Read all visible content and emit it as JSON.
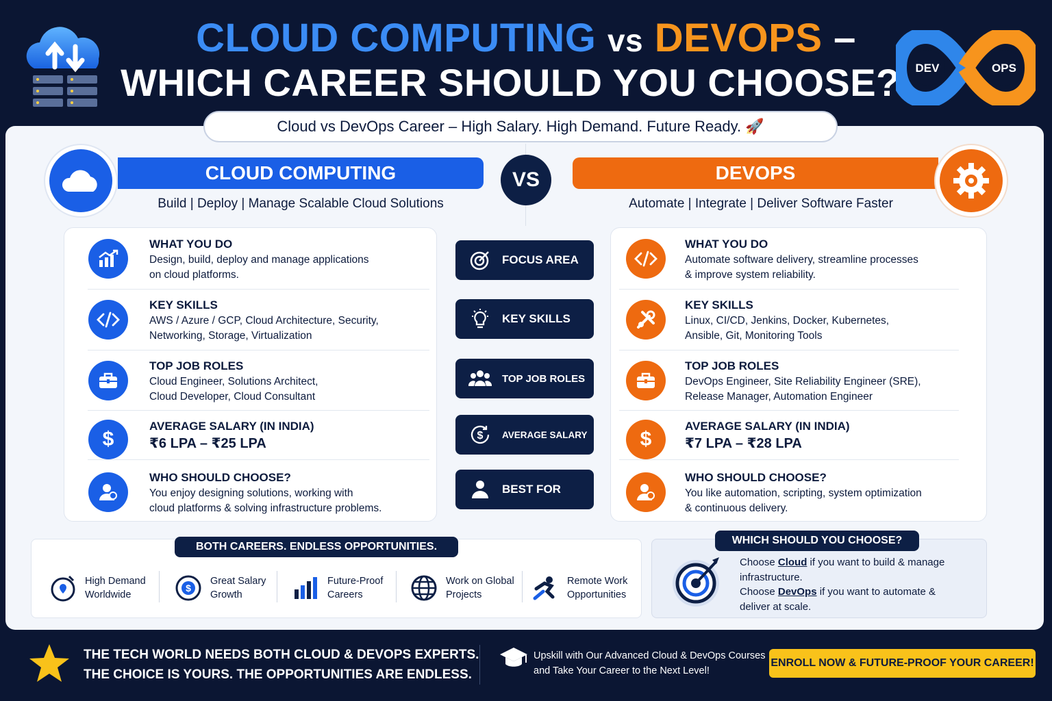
{
  "header": {
    "title_cloud": "CLOUD COMPUTING",
    "title_vs": "vs",
    "title_devops": "DEVOPS",
    "title_dash": "–",
    "title_line2": "WHICH CAREER SHOULD YOU CHOOSE?",
    "tagline": "Cloud vs DevOps Career – High Salary. High Demand. Future Ready. 🚀",
    "logo_left": "DEV",
    "logo_right": "OPS"
  },
  "cloud": {
    "heading": "CLOUD COMPUTING",
    "subtitle": "Build | Deploy | Manage Scalable Cloud Solutions",
    "rows": [
      {
        "title": "WHAT YOU DO",
        "line1": "Design, build, deploy and manage applications",
        "line2": "on cloud platforms."
      },
      {
        "title": "KEY SKILLS",
        "line1": "AWS / Azure / GCP, Cloud Architecture, Security,",
        "line2": "Networking, Storage, Virtualization"
      },
      {
        "title": "TOP JOB ROLES",
        "line1": "Cloud Engineer, Solutions Architect,",
        "line2": "Cloud Developer, Cloud Consultant"
      },
      {
        "title": "AVERAGE SALARY (IN INDIA)",
        "line1": "₹6 LPA – ₹25 LPA",
        "line2": ""
      },
      {
        "title": "WHO SHOULD CHOOSE?",
        "line1": "You enjoy designing solutions, working with",
        "line2": "cloud platforms & solving infrastructure problems."
      }
    ]
  },
  "vs_label": "VS",
  "devops": {
    "heading": "DEVOPS",
    "subtitle": "Automate | Integrate | Deliver Software Faster",
    "rows": [
      {
        "title": "WHAT YOU DO",
        "line1": "Automate software delivery, streamline processes",
        "line2": "& improve system reliability."
      },
      {
        "title": "KEY SKILLS",
        "line1": "Linux, CI/CD, Jenkins, Docker, Kubernetes,",
        "line2": "Ansible, Git, Monitoring Tools"
      },
      {
        "title": "TOP JOB ROLES",
        "line1": "DevOps Engineer, Site Reliability Engineer (SRE),",
        "line2": "Release Manager, Automation Engineer"
      },
      {
        "title": "AVERAGE SALARY (IN INDIA)",
        "line1": "₹7 LPA – ₹28 LPA",
        "line2": ""
      },
      {
        "title": "WHO SHOULD CHOOSE?",
        "line1": "You like automation, scripting, system optimization",
        "line2": "& continuous delivery."
      }
    ]
  },
  "middle": [
    "FOCUS AREA",
    "KEY SKILLS",
    "TOP JOB ROLES",
    "AVERAGE SALARY",
    "BEST FOR"
  ],
  "opportunities": {
    "heading": "BOTH CAREERS. ENDLESS OPPORTUNITIES.",
    "items": [
      {
        "l1": "High Demand",
        "l2": "Worldwide"
      },
      {
        "l1": "Great Salary",
        "l2": "Growth"
      },
      {
        "l1": "Future-Proof",
        "l2": "Careers"
      },
      {
        "l1": "Work on Global",
        "l2": "Projects"
      },
      {
        "l1": "Remote Work",
        "l2": "Opportunities"
      }
    ]
  },
  "choose": {
    "heading": "WHICH SHOULD YOU CHOOSE?",
    "p1_pre": "Choose ",
    "p1_link": "Cloud",
    "p1_post": " if you want to build & manage",
    "p1_line2": "infrastructure.",
    "p2_pre": "Choose ",
    "p2_link": "DevOps",
    "p2_post": " if you want to automate &",
    "p2_line2": "deliver at scale."
  },
  "footer": {
    "line1": "THE TECH WORLD NEEDS BOTH CLOUD & DEVOPS EXPERTS.",
    "line2": "THE CHOICE IS YOURS. THE OPPORTUNITIES ARE ENDLESS.",
    "upskill1": "Upskill with Our Advanced Cloud & DevOps Courses",
    "upskill2": "and Take Your Career to the Next Level!",
    "cta": "ENROLL NOW & FUTURE-PROOF YOUR CAREER!"
  },
  "colors": {
    "cloud_blue": "#1a5fe6",
    "devops_orange": "#ee6a10",
    "navy": "#0d1f45",
    "cta_yellow": "#f9c21a"
  }
}
